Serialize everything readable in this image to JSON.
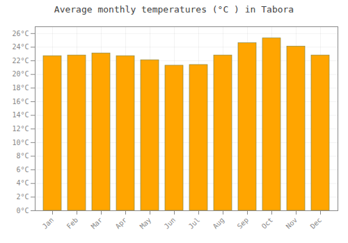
{
  "chart_data": {
    "type": "bar",
    "title": "Average monthly temperatures (°C ) in Tabora",
    "categories": [
      "Jan",
      "Feb",
      "Mar",
      "Apr",
      "May",
      "Jun",
      "Jul",
      "Aug",
      "Sep",
      "Oct",
      "Nov",
      "Dec"
    ],
    "values": [
      22.7,
      22.8,
      23.1,
      22.7,
      22.1,
      21.3,
      21.4,
      22.8,
      24.6,
      25.3,
      24.1,
      22.8
    ],
    "color": "#FFA500",
    "ylim": [
      0,
      27
    ],
    "yticks": [
      {
        "value": 0,
        "label": "0°C"
      },
      {
        "value": 2,
        "label": "2°C"
      },
      {
        "value": 4,
        "label": "4°C"
      },
      {
        "value": 6,
        "label": "6°C"
      },
      {
        "value": 8,
        "label": "8°C"
      },
      {
        "value": 10,
        "label": "10°C"
      },
      {
        "value": 12,
        "label": "12°C"
      },
      {
        "value": 14,
        "label": "14°C"
      },
      {
        "value": 16,
        "label": "16°C"
      },
      {
        "value": 18,
        "label": "18°C"
      },
      {
        "value": 20,
        "label": "20°C"
      },
      {
        "value": 22,
        "label": "22°C"
      },
      {
        "value": 24,
        "label": "24°C"
      },
      {
        "value": 26,
        "label": "26°C"
      }
    ],
    "grid": true
  }
}
